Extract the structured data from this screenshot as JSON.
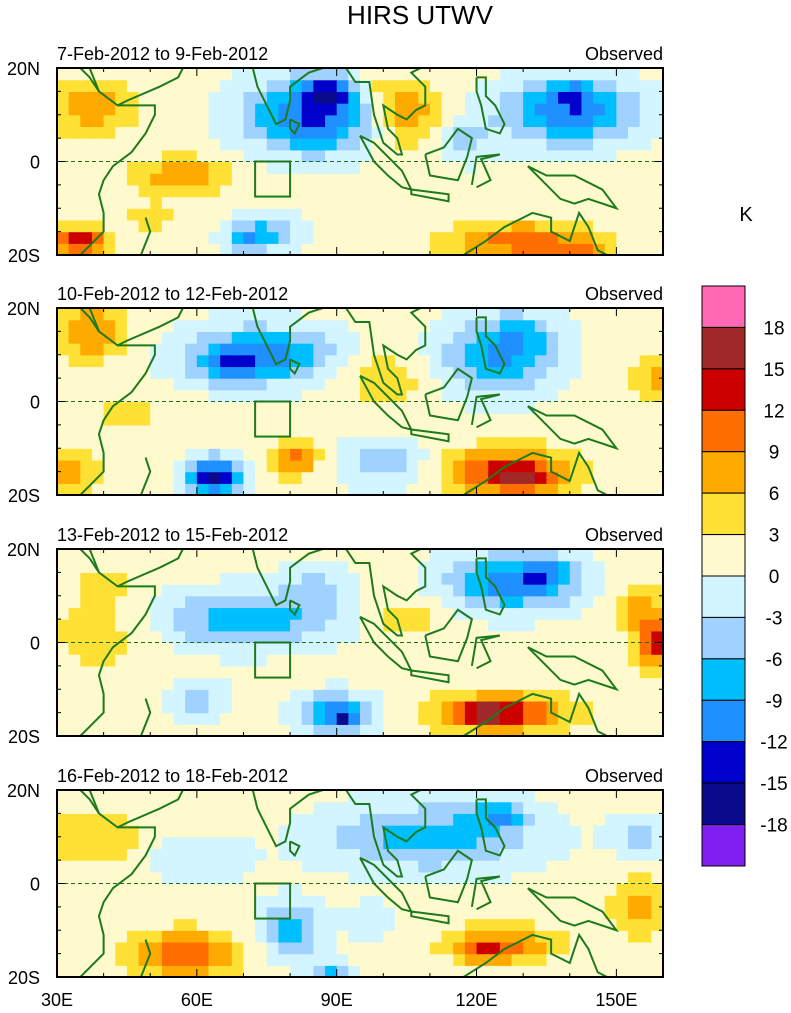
{
  "chart_data": {
    "type": "heatmap",
    "title": "HIRS UTWV",
    "units_label": "K",
    "xlim": [
      30,
      160
    ],
    "ylim": [
      -20,
      20
    ],
    "x_ticks": [
      {
        "v": 30,
        "label": "30E"
      },
      {
        "v": 60,
        "label": "60E"
      },
      {
        "v": 90,
        "label": "90E"
      },
      {
        "v": 120,
        "label": "120E"
      },
      {
        "v": 150,
        "label": "150E"
      }
    ],
    "y_ticks": [
      {
        "v": 20,
        "label": "20N"
      },
      {
        "v": 0,
        "label": "0"
      },
      {
        "v": -20,
        "label": "20S"
      }
    ],
    "colorbar": {
      "levels": [
        -18,
        -15,
        -12,
        -9,
        -6,
        -3,
        0,
        3,
        6,
        9,
        12,
        15,
        18
      ],
      "level_labels": [
        "-18",
        "-15",
        "-12",
        "-9",
        "-6",
        "-3",
        "0",
        "3",
        "6",
        "9",
        "12",
        "15",
        "18"
      ],
      "colors": [
        "#8020f0",
        "#0a0a8c",
        "#0000cd",
        "#1e90ff",
        "#00bfff",
        "#a0d2ff",
        "#d2f5ff",
        "#fffacd",
        "#ffe135",
        "#ffaa00",
        "#ff6e00",
        "#cd0000",
        "#a02828",
        "#ff69b4"
      ]
    },
    "box_region": {
      "lon": [
        72.5,
        80
      ],
      "lat": [
        -7.5,
        0
      ]
    },
    "panels": [
      {
        "period": "7-Feb-2012 to 9-Feb-2012",
        "label": "Observed",
        "base": 1,
        "features": [
          [
            85,
            10,
            14,
            8,
            -14
          ],
          [
            88,
            15,
            5,
            3,
            -8
          ],
          [
            37,
            12,
            10,
            6,
            7
          ],
          [
            57,
            -3,
            10,
            4,
            8
          ],
          [
            35,
            -17,
            6,
            3,
            13
          ],
          [
            105,
            10,
            8,
            7,
            8
          ],
          [
            100,
            16,
            5,
            3,
            4
          ],
          [
            140,
            11,
            14,
            7,
            -13
          ],
          [
            141,
            15,
            4,
            2,
            -5
          ],
          [
            75,
            -15,
            8,
            4,
            -7
          ],
          [
            71,
            -17,
            4,
            3,
            -6
          ],
          [
            130,
            -17,
            16,
            4,
            10
          ],
          [
            142,
            -19,
            5,
            2,
            5
          ],
          [
            117,
            5,
            7,
            5,
            -5
          ],
          [
            50,
            -12,
            6,
            4,
            3
          ]
        ]
      },
      {
        "period": "10-Feb-2012 to 12-Feb-2012",
        "label": "Observed",
        "base": 1,
        "features": [
          [
            73,
            10,
            16,
            6,
            -12
          ],
          [
            67,
            7,
            5,
            3,
            -6
          ],
          [
            37,
            15,
            8,
            6,
            8
          ],
          [
            125,
            10,
            12,
            8,
            -11
          ],
          [
            130,
            15,
            6,
            4,
            -3
          ],
          [
            64,
            -16,
            6,
            4,
            -17
          ],
          [
            127,
            -15,
            13,
            5,
            14
          ],
          [
            130,
            -17,
            5,
            2,
            4
          ],
          [
            81,
            -12,
            5,
            4,
            9
          ],
          [
            100,
            -13,
            10,
            5,
            -6
          ],
          [
            100,
            5,
            8,
            6,
            5
          ],
          [
            32,
            -15,
            6,
            4,
            8
          ],
          [
            158,
            5,
            5,
            5,
            6
          ],
          [
            45,
            -2,
            8,
            5,
            3
          ]
        ]
      },
      {
        "period": "13-Feb-2012 to 15-Feb-2012",
        "label": "Observed",
        "base": 1,
        "features": [
          [
            70,
            5,
            20,
            6,
            -9
          ],
          [
            85,
            12,
            8,
            5,
            -4
          ],
          [
            128,
            13,
            14,
            6,
            -12
          ],
          [
            135,
            15,
            4,
            3,
            -6
          ],
          [
            125,
            -15,
            14,
            4,
            14
          ],
          [
            120,
            -15,
            4,
            2,
            5
          ],
          [
            159,
            0,
            5,
            5,
            13
          ],
          [
            155,
            8,
            6,
            5,
            6
          ],
          [
            90,
            -15,
            8,
            4,
            -12
          ],
          [
            92,
            -16,
            3,
            2,
            -6
          ],
          [
            40,
            2,
            12,
            8,
            4
          ],
          [
            40,
            12,
            5,
            4,
            4
          ],
          [
            60,
            -12,
            6,
            4,
            -6
          ],
          [
            105,
            5,
            8,
            5,
            4
          ]
        ]
      },
      {
        "period": "16-Feb-2012 to 18-Feb-2012",
        "label": "Observed",
        "base": 1,
        "features": [
          [
            110,
            10,
            22,
            7,
            -9
          ],
          [
            125,
            15,
            6,
            3,
            -8
          ],
          [
            80,
            -10,
            6,
            6,
            -10
          ],
          [
            88,
            -19,
            4,
            3,
            -8
          ],
          [
            57,
            -15,
            12,
            5,
            10
          ],
          [
            125,
            -13,
            12,
            4,
            9
          ],
          [
            122,
            -15,
            4,
            2,
            5
          ],
          [
            38,
            10,
            10,
            6,
            5
          ],
          [
            155,
            -5,
            6,
            6,
            7
          ],
          [
            155,
            10,
            6,
            4,
            -5
          ],
          [
            97,
            -8,
            5,
            4,
            -4
          ],
          [
            60,
            5,
            10,
            5,
            -4
          ]
        ]
      }
    ]
  }
}
